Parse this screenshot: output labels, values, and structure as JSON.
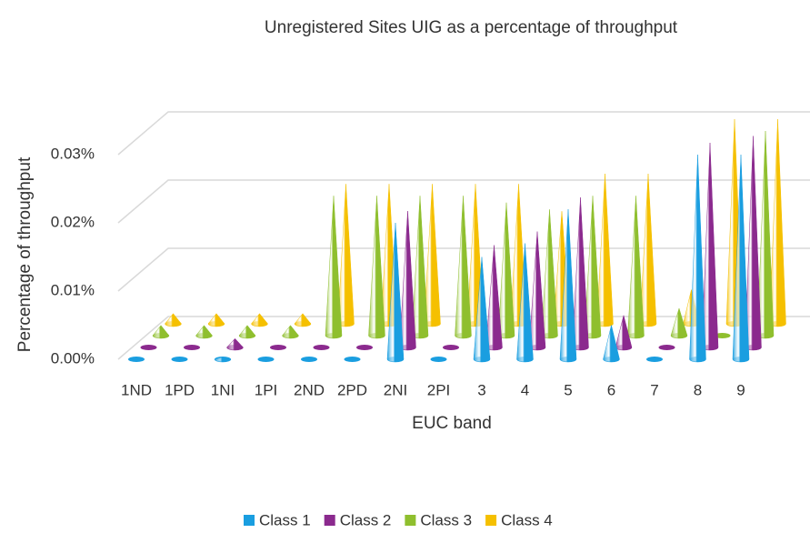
{
  "chart_data": {
    "type": "cone3d",
    "title": "Unregistered Sites UIG as a percentage of throughput",
    "x_label": "EUC band",
    "y_label": "Percentage of throughput",
    "categories": [
      "1ND",
      "1PD",
      "1NI",
      "1PI",
      "2ND",
      "2PD",
      "2NI",
      "2PI",
      "3",
      "4",
      "5",
      "6",
      "7",
      "8",
      "9"
    ],
    "series": [
      {
        "name": "Class 1",
        "color": "#1a9ee0",
        "values": [
          0,
          0,
          0.0003,
          0,
          0,
          0,
          0.02,
          0,
          0.015,
          0.017,
          0.022,
          0.005,
          0,
          0.03,
          0.03
        ]
      },
      {
        "name": "Class 2",
        "color": "#8b2a8e",
        "values": [
          0,
          0,
          0.0013,
          0,
          0,
          0,
          0.02,
          0,
          0.015,
          0.017,
          0.022,
          0.0047,
          0,
          0.03,
          0.031
        ]
      },
      {
        "name": "Class 3",
        "color": "#8fbf2e",
        "values": [
          0.0015,
          0.0015,
          0.0015,
          0.0015,
          0.0205,
          0.0205,
          0.0205,
          0.0205,
          0.0195,
          0.0185,
          0.0205,
          0.0205,
          0.004,
          0,
          0.03
        ]
      },
      {
        "name": "Class 4",
        "color": "#f5c000",
        "values": [
          0.0015,
          0.0015,
          0.0015,
          0.0015,
          0.0205,
          0.0205,
          0.0205,
          0.0205,
          0.0205,
          0.0165,
          0.022,
          0.022,
          0.005,
          0.03,
          0.03
        ]
      }
    ],
    "ylim": [
      0,
      0.03
    ],
    "yticks": [
      {
        "value": 0,
        "label": "0.00%"
      },
      {
        "value": 0.01,
        "label": "0.01%"
      },
      {
        "value": 0.02,
        "label": "0.02%"
      },
      {
        "value": 0.03,
        "label": "0.03%"
      }
    ],
    "grid": true,
    "legend": "bottom"
  }
}
